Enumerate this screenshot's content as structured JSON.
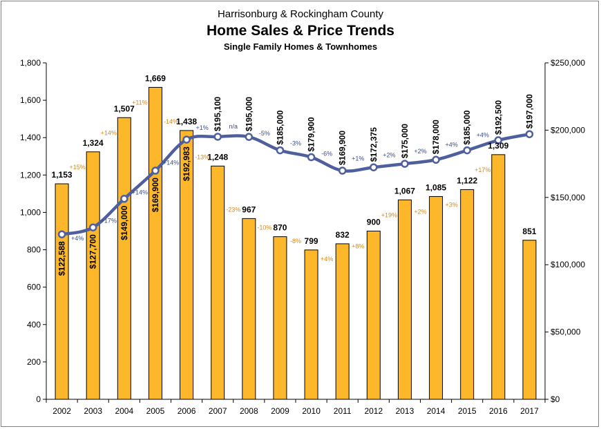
{
  "header": {
    "line1": "Harrisonburg & Rockingham County",
    "line2": "Home Sales & Price Trends",
    "line3": "Single Family Homes & Townhomes"
  },
  "colors": {
    "bar": "#FCB82A",
    "bar_stroke": "#000000",
    "line": "#4F5F9E",
    "bar_pct": "#D48A1E",
    "line_pct": "#3B4C8A"
  },
  "chart_data": {
    "type": "bar",
    "title": "Home Sales & Price Trends",
    "categories": [
      "2002",
      "2003",
      "2004",
      "2005",
      "2006",
      "2007",
      "2008",
      "2009",
      "2010",
      "2011",
      "2012",
      "2013",
      "2014",
      "2015",
      "2016",
      "2017"
    ],
    "series": [
      {
        "values": [
          1153,
          1324,
          1507,
          1669,
          1438,
          1248,
          967,
          870,
          799,
          832,
          900,
          1067,
          1085,
          1122,
          1309,
          851
        ],
        "labels": [
          "1,153",
          "1,324",
          "1,507",
          "1,669",
          "1,438",
          "1,248",
          "967",
          "870",
          "799",
          "832",
          "900",
          "1,067",
          "1,085",
          "1,122",
          "1,309",
          "851"
        ],
        "pct_labels": [
          "",
          "+15%",
          "+14%",
          "+11%",
          "-14%",
          "-13%",
          "-23%",
          "-10%",
          "-8%",
          "+4%",
          "+8%",
          "+19%",
          "+2%",
          "+3%",
          "+17%",
          ""
        ]
      },
      {
        "type": "line",
        "axis": "right",
        "values": [
          122588,
          127700,
          149000,
          169900,
          192983,
          195100,
          195000,
          185000,
          179900,
          169900,
          172375,
          175000,
          178000,
          185000,
          192500,
          197000
        ],
        "labels": [
          "$122,588",
          "$127,700",
          "$149,000",
          "$169,900",
          "$192,983",
          "$195,100",
          "$195,000",
          "$185,000",
          "$179,900",
          "$169,900",
          "$172,375",
          "$175,000",
          "$178,000",
          "$185,000",
          "$192,500",
          "$197,000"
        ],
        "pct_labels": [
          "+4%",
          "+17%",
          "+14%",
          "+14%",
          "+1%",
          "n/a",
          "-5%",
          "-3%",
          "-6%",
          "+1%",
          "+2%",
          "+2%",
          "+4%",
          "+4%",
          ""
        ]
      }
    ],
    "y_left": {
      "lim": [
        0,
        1800
      ],
      "ticks": [
        "0",
        "200",
        "400",
        "600",
        "800",
        "1,000",
        "1,200",
        "1,400",
        "1,600",
        "1,800"
      ]
    },
    "y_right": {
      "lim": [
        0,
        250000
      ],
      "ticks": [
        "$0",
        "$50,000",
        "$100,000",
        "$150,000",
        "$200,000",
        "$250,000"
      ]
    },
    "grid": false,
    "legend": "none"
  }
}
